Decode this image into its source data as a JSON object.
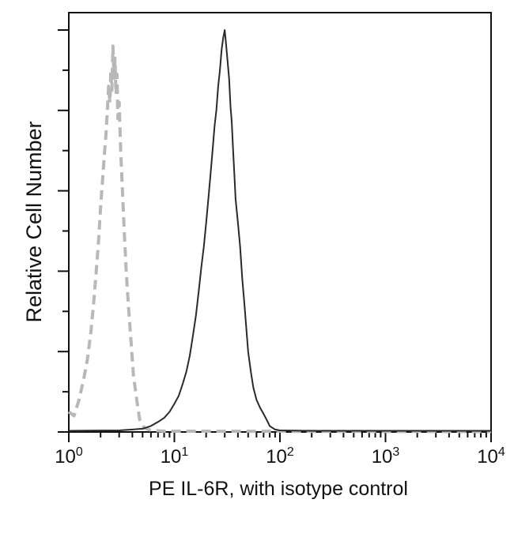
{
  "chart_data": {
    "type": "line",
    "title": "",
    "xlabel": "PE IL-6R, with isotype control",
    "ylabel": "Relative Cell Number",
    "x_scale": "log",
    "xlim": [
      1,
      10000
    ],
    "ylim": [
      0,
      100
    ],
    "x_ticks": [
      {
        "base": "10",
        "exp": "0",
        "value": 1
      },
      {
        "base": "10",
        "exp": "1",
        "value": 10
      },
      {
        "base": "10",
        "exp": "2",
        "value": 100
      },
      {
        "base": "10",
        "exp": "3",
        "value": 1000
      },
      {
        "base": "10",
        "exp": "4",
        "value": 10000
      }
    ],
    "y_major_ticks": [
      0,
      20,
      40,
      60,
      80,
      100
    ],
    "grid": false,
    "legend": "none",
    "series": [
      {
        "style": "dashed",
        "color": "#b8b8b8",
        "points": [
          [
            1.0,
            5
          ],
          [
            1.12,
            4
          ],
          [
            1.25,
            8
          ],
          [
            1.38,
            13
          ],
          [
            1.5,
            18
          ],
          [
            1.62,
            25
          ],
          [
            1.72,
            32
          ],
          [
            1.82,
            40
          ],
          [
            1.92,
            48
          ],
          [
            2.0,
            56
          ],
          [
            2.08,
            62
          ],
          [
            2.16,
            68
          ],
          [
            2.25,
            74
          ],
          [
            2.32,
            80
          ],
          [
            2.38,
            86
          ],
          [
            2.45,
            82
          ],
          [
            2.5,
            90
          ],
          [
            2.56,
            85
          ],
          [
            2.62,
            96
          ],
          [
            2.68,
            88
          ],
          [
            2.74,
            93
          ],
          [
            2.8,
            84
          ],
          [
            2.86,
            89
          ],
          [
            2.92,
            78
          ],
          [
            3.0,
            82
          ],
          [
            3.1,
            70
          ],
          [
            3.2,
            62
          ],
          [
            3.35,
            50
          ],
          [
            3.5,
            40
          ],
          [
            3.7,
            30
          ],
          [
            3.9,
            22
          ],
          [
            4.1,
            14
          ],
          [
            4.4,
            8
          ],
          [
            4.7,
            3
          ],
          [
            5.2,
            1
          ],
          [
            6.0,
            0.4
          ],
          [
            8.0,
            0.2
          ],
          [
            10000,
            0.1
          ]
        ]
      },
      {
        "style": "solid",
        "color": "#2a2a2a",
        "points": [
          [
            1.0,
            0.3
          ],
          [
            3.0,
            0.4
          ],
          [
            4.0,
            0.6
          ],
          [
            5.0,
            0.8
          ],
          [
            6.0,
            1.5
          ],
          [
            7.0,
            2.5
          ],
          [
            8.0,
            3.5
          ],
          [
            9.0,
            5
          ],
          [
            10.0,
            7
          ],
          [
            11.0,
            9
          ],
          [
            12.0,
            12
          ],
          [
            13.0,
            15
          ],
          [
            14.0,
            19
          ],
          [
            15.0,
            24
          ],
          [
            16.0,
            29
          ],
          [
            17.0,
            35
          ],
          [
            18.0,
            41
          ],
          [
            19.0,
            46
          ],
          [
            20.0,
            52
          ],
          [
            21.0,
            58
          ],
          [
            22.0,
            64
          ],
          [
            23.0,
            70
          ],
          [
            24.0,
            76
          ],
          [
            25.0,
            80
          ],
          [
            26.0,
            86
          ],
          [
            27.0,
            90
          ],
          [
            28.0,
            95
          ],
          [
            29.0,
            98
          ],
          [
            30.0,
            100
          ],
          [
            31.0,
            96
          ],
          [
            32.0,
            92
          ],
          [
            33.0,
            88
          ],
          [
            34.0,
            81
          ],
          [
            35.0,
            77
          ],
          [
            36.0,
            70
          ],
          [
            37.0,
            64
          ],
          [
            38.0,
            58
          ],
          [
            40.0,
            52
          ],
          [
            42.0,
            46
          ],
          [
            44.0,
            38
          ],
          [
            46.0,
            32
          ],
          [
            48.0,
            26
          ],
          [
            50.0,
            20
          ],
          [
            53.0,
            15
          ],
          [
            56.0,
            11
          ],
          [
            60.0,
            8
          ],
          [
            65.0,
            6
          ],
          [
            70.0,
            4.5
          ],
          [
            75.0,
            3
          ],
          [
            80.0,
            1.5
          ],
          [
            90.0,
            0.6
          ],
          [
            100.0,
            0.4
          ],
          [
            200.0,
            0.3
          ],
          [
            1000.0,
            0.3
          ],
          [
            10000,
            0.3
          ]
        ]
      }
    ]
  }
}
